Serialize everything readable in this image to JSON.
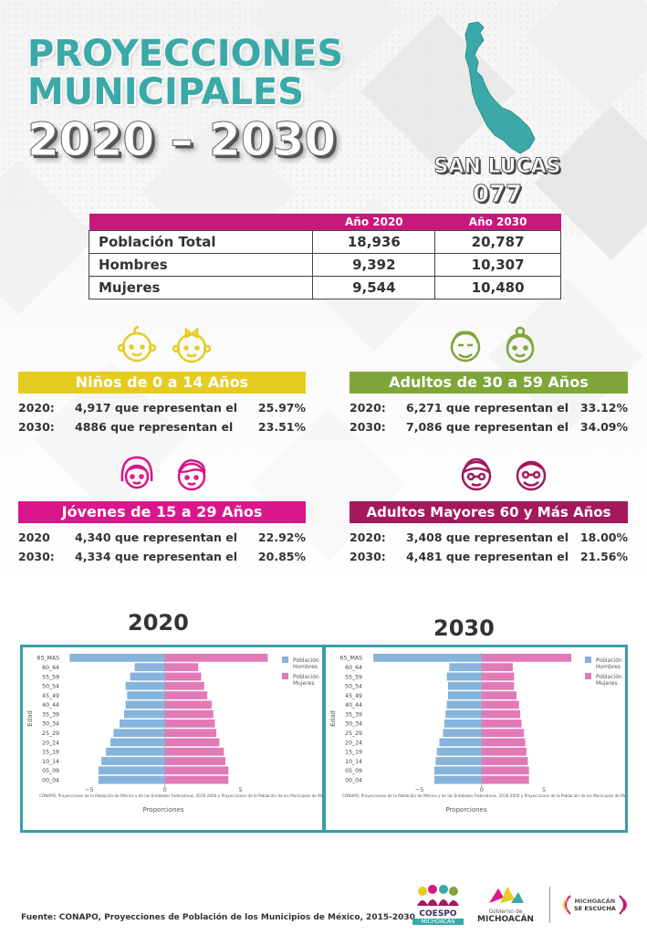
{
  "header": {
    "title_line1": "PROYECCIONES",
    "title_line2": "MUNICIPALES",
    "title_line3": "2020 – 2030",
    "municipality": "SAN LUCAS",
    "code": "077"
  },
  "population_table": {
    "col_2020": "Año 2020",
    "col_2030": "Año 2030",
    "rows": [
      {
        "label": "Población Total",
        "v2020": "18,936",
        "v2030": "20,787"
      },
      {
        "label": "Hombres",
        "v2020": "9,392",
        "v2030": "10,307"
      },
      {
        "label": "Mujeres",
        "v2020": "9,544",
        "v2030": "10,480"
      }
    ]
  },
  "groups": {
    "children": {
      "title": "Niños de 0 a 14 Años",
      "color": "#e5cc22",
      "rows": [
        {
          "year": "2020:",
          "count": "4,917 que representan el",
          "pct": "25.97%"
        },
        {
          "year": "2030:",
          "count": "4886 que representan el",
          "pct": "23.51%"
        }
      ]
    },
    "adults": {
      "title": "Adultos de 30 a 59 Años",
      "color": "#7ea63a",
      "rows": [
        {
          "year": "2020:",
          "count": "6,271 que representan el",
          "pct": "33.12%"
        },
        {
          "year": "2030:",
          "count": "7,086 que representan el",
          "pct": "34.09%"
        }
      ]
    },
    "youth": {
      "title": "Jóvenes de 15 a 29 Años",
      "color": "#d9168a",
      "rows": [
        {
          "year": "2020",
          "count": "4,340 que representan el",
          "pct": "22.92%"
        },
        {
          "year": "2030:",
          "count": "4,334 que representan el",
          "pct": "20.85%"
        }
      ]
    },
    "seniors": {
      "title": "Adultos Mayores  60 y Más Años",
      "color": "#a3195b",
      "rows": [
        {
          "year": "2020:",
          "count": "3,408 que representan el",
          "pct": "18.00%"
        },
        {
          "year": "2030:",
          "count": "4,481 que representan el",
          "pct": "21.56%"
        }
      ]
    }
  },
  "chart_data": [
    {
      "type": "bar",
      "title": "2020",
      "categories": [
        "65_MAS",
        "60_64",
        "55_59",
        "50_54",
        "45_49",
        "40_44",
        "35_39",
        "30_34",
        "25_29",
        "20_24",
        "15_19",
        "10_14",
        "05_09",
        "00_04"
      ],
      "series": [
        {
          "name": "Población Hombres",
          "color": "#86b4dc",
          "values": [
            -6.3,
            -2.0,
            -2.3,
            -2.6,
            -2.5,
            -2.6,
            -2.7,
            -3.0,
            -3.4,
            -3.6,
            -3.9,
            -4.2,
            -4.4,
            -4.4
          ]
        },
        {
          "name": "Población Mujeres",
          "color": "#e27ab8",
          "values": [
            6.8,
            2.2,
            2.4,
            2.6,
            2.8,
            3.1,
            3.2,
            3.3,
            3.4,
            3.6,
            3.9,
            4.0,
            4.2,
            4.2
          ]
        }
      ],
      "ylabel": "Edad",
      "xlabel": "Proporciones",
      "xlim": [
        -6.5,
        7.5
      ],
      "xticks": [
        "−5",
        "0",
        "5"
      ],
      "note": "CONAPO, Proyecciones de la Población de México y de las Entidades Federativas, 2016-2050 y Proyecciones de la Población de los Municipios de México,"
    },
    {
      "type": "bar",
      "title": "2030",
      "categories": [
        "65_MAS",
        "60_64",
        "55_59",
        "50_54",
        "45_49",
        "40_44",
        "35_39",
        "30_34",
        "25_29",
        "20_24",
        "15_19",
        "10_14",
        "05_09",
        "00_04"
      ],
      "series": [
        {
          "name": "Población Hombres",
          "color": "#86b4dc",
          "values": [
            -8.7,
            -2.6,
            -2.8,
            -2.7,
            -2.7,
            -2.8,
            -2.9,
            -3.0,
            -3.1,
            -3.4,
            -3.6,
            -3.7,
            -3.8,
            -3.8
          ]
        },
        {
          "name": "Población Mujeres",
          "color": "#e27ab8",
          "values": [
            7.2,
            2.5,
            2.6,
            2.6,
            2.8,
            3.0,
            3.1,
            3.2,
            3.4,
            3.5,
            3.6,
            3.7,
            3.8,
            3.8
          ]
        }
      ],
      "ylabel": "Edad",
      "xlabel": "Proporciones",
      "xlim": [
        -9,
        8
      ],
      "xticks": [
        "−5",
        "0",
        "5"
      ],
      "note": "CONAPO, Proyecciones de la Población de México y de las Entidades Federativas, 2016-2050 y Proyecciones de la Población de los Municipios de México,"
    }
  ],
  "charts_titles": {
    "left": "2020",
    "right": "2030"
  },
  "footer": {
    "source": "Fuente: CONAPO, Proyecciones de Población de los Municipios de México, 2015-2030"
  },
  "logos": {
    "coespo_line1": "COESPO",
    "coespo_line2": "MICHOACÁN",
    "gob_line1": "Gobierno de",
    "gob_line2": "MICHOACÁN",
    "slogan_line1": "MICHOACÁN",
    "slogan_line2": "SE ESCUCHA"
  }
}
